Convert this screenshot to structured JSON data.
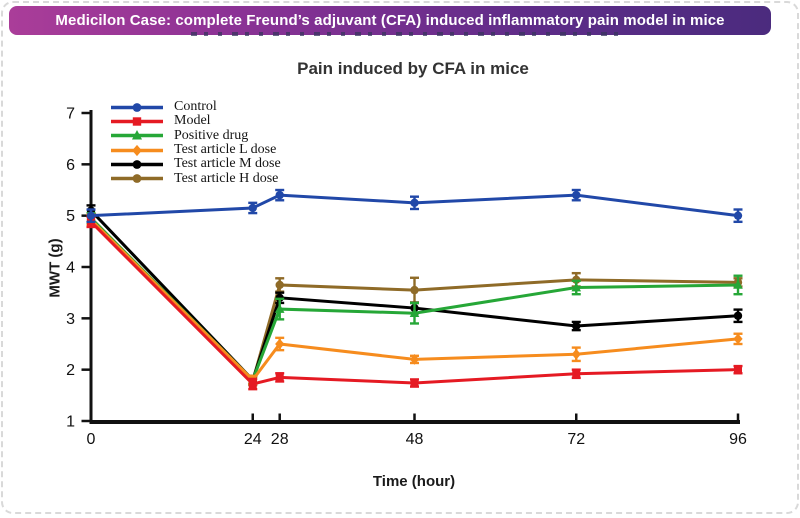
{
  "banner": {
    "text": "Medicilon Case: complete Freund’s adjuvant (CFA) induced inflammatory pain model in mice",
    "gradient_left": "#aa3d99",
    "gradient_right": "#4b2b7e",
    "text_color": "#ffffff"
  },
  "chart_data": {
    "type": "line",
    "title": "Pain induced by CFA in mice",
    "xlabel": "Time (hour)",
    "ylabel": "MWT (g)",
    "x": [
      0,
      24,
      28,
      48,
      72,
      96
    ],
    "x_ticks": [
      0,
      24,
      28,
      48,
      72,
      96
    ],
    "y_ticks": [
      1,
      2,
      3,
      4,
      5,
      6,
      7
    ],
    "xlim": [
      0,
      96
    ],
    "ylim": [
      1,
      7
    ],
    "grid": false,
    "error_bars": true,
    "legend_position": "top-left",
    "axis_color": "#111111",
    "series": [
      {
        "name": "Control",
        "color": "#2148a8",
        "marker": "circle",
        "values": [
          5.0,
          5.15,
          5.4,
          5.25,
          5.4,
          5.0
        ],
        "errors": [
          0.12,
          0.1,
          0.1,
          0.12,
          0.1,
          0.12
        ]
      },
      {
        "name": "Model",
        "color": "#e51a23",
        "marker": "square",
        "values": [
          4.88,
          1.72,
          1.85,
          1.74,
          1.92,
          2.0
        ],
        "errors": [
          0.1,
          0.1,
          0.08,
          0.07,
          0.08,
          0.07
        ]
      },
      {
        "name": "Positive drug",
        "color": "#26a737",
        "marker": "triangle",
        "values": [
          4.95,
          1.8,
          3.18,
          3.1,
          3.6,
          3.65
        ],
        "errors": [
          0.1,
          0.08,
          0.2,
          0.2,
          0.13,
          0.18
        ]
      },
      {
        "name": "Test article L dose",
        "color": "#f68c1e",
        "marker": "diamond",
        "values": [
          4.92,
          1.8,
          2.5,
          2.2,
          2.3,
          2.6
        ],
        "errors": [
          0.1,
          0.08,
          0.12,
          0.07,
          0.13,
          0.1
        ]
      },
      {
        "name": "Test article M dose",
        "color": "#000000",
        "marker": "circle",
        "values": [
          5.1,
          1.8,
          3.4,
          3.2,
          2.85,
          3.05
        ],
        "errors": [
          0.1,
          0.08,
          0.1,
          0.1,
          0.08,
          0.12
        ]
      },
      {
        "name": "Test article H dose",
        "color": "#8f6b28",
        "marker": "circle",
        "values": [
          4.95,
          1.78,
          3.65,
          3.55,
          3.75,
          3.7
        ],
        "errors": [
          0.1,
          0.08,
          0.13,
          0.24,
          0.13,
          0.08
        ]
      }
    ]
  }
}
